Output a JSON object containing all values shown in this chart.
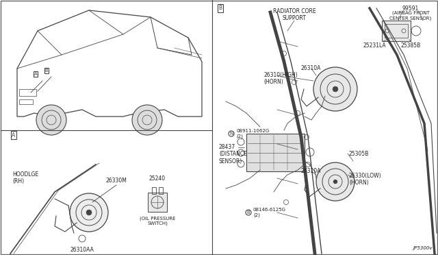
{
  "bg_color": "#ffffff",
  "line_color": "#444444",
  "text_color": "#222222",
  "border_color": "#666666",
  "labels": {
    "radiator_core": "RADIATOR CORE\nSUPPORT",
    "airbag_sensor_num": "99591",
    "airbag_sensor": "(AIRBAG FRONT\nCENTER SENSOR)",
    "part_25231la": "25231LA",
    "part_25385b_top": "25385B",
    "part_26310_high": "26310(HIGH)\n(HORN)",
    "part_26310a_high": "26310A",
    "part_28437": "28437\n(DISTANCE\nSENSOR)",
    "bolt_08911": "08911-1062G\n(2)",
    "part_25305b": "25305B",
    "part_26310a_low": "26310A",
    "part_26330_low": "26330(LOW)\n(HORN)",
    "bolt_08146": "08146-6125G\n(2)",
    "section_a": "A",
    "section_b": "B",
    "hood_lge": "HOODLGE\n(RH)",
    "part_26330m": "26330M",
    "part_25240": "25240",
    "oil_pressure": "(OIL PRESSURE\nSWITCH)",
    "part_26310aa": "26310AA",
    "jp5300v": "JP5300v"
  }
}
